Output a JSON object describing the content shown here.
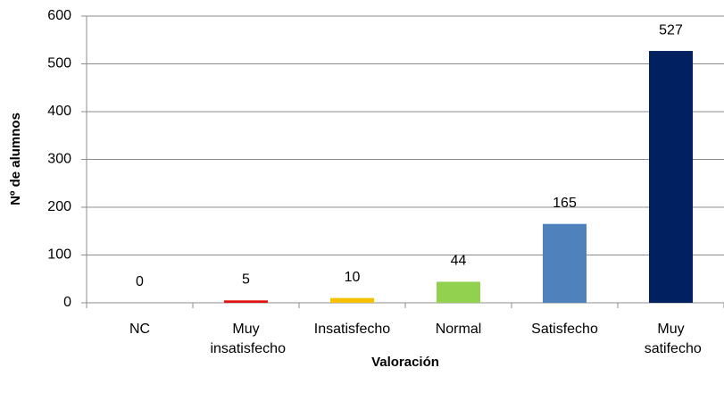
{
  "chart_data": {
    "type": "bar",
    "x_label": "Valoración",
    "y_label": "Nº de alumnos",
    "categories": [
      "NC",
      "Muy insatisfecho",
      "Insatisfecho",
      "Normal",
      "Satisfecho",
      "Muy satifecho"
    ],
    "values": [
      0,
      5,
      10,
      44,
      165,
      527
    ],
    "colors": [
      "#4f81bd",
      "#e31010",
      "#f5c000",
      "#92d050",
      "#4f81bd",
      "#002060"
    ],
    "ylim": [
      0,
      600
    ],
    "yticks": [
      0,
      100,
      200,
      300,
      400,
      500,
      600
    ],
    "grid": true
  }
}
